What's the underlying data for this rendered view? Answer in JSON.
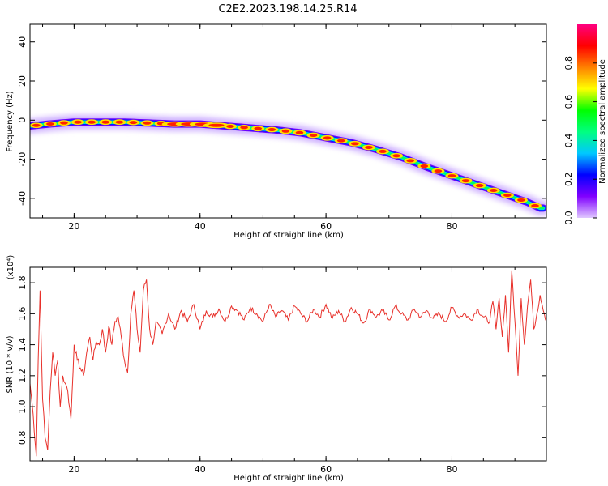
{
  "title": "C2E2.2023.198.14.25.R14",
  "chart_data": [
    {
      "type": "heatmap",
      "xlabel": "Height of straight line (km)",
      "ylabel": "Frequency (Hz)",
      "xlim": [
        13,
        95
      ],
      "ylim": [
        -50,
        49
      ],
      "xticks": [
        20,
        40,
        60,
        80
      ],
      "yticks": [
        40,
        20,
        0,
        -20,
        -40
      ],
      "ridge": {
        "x": [
          13,
          16,
          20,
          24,
          28,
          32,
          36,
          40,
          44,
          48,
          52,
          56,
          60,
          64,
          68,
          72,
          76,
          80,
          84,
          88,
          92,
          94
        ],
        "y": [
          -3,
          -2,
          -1,
          -1,
          -1,
          -1.5,
          -2,
          -2,
          -3,
          -4,
          -5,
          -6.5,
          -9,
          -11.5,
          -15,
          -19,
          -24,
          -28.5,
          -33,
          -37.5,
          -42,
          -45
        ]
      },
      "colorbar": {
        "label": "Normalized spectral amplitude",
        "range": [
          0,
          1
        ],
        "ticks": [
          "0.0",
          "0.2",
          "0.4",
          "0.6",
          "0.8"
        ],
        "stops": [
          "#e0c8ff",
          "#8000ff",
          "#0000ff",
          "#00c8ff",
          "#00ff80",
          "#00ff00",
          "#ffff00",
          "#ff8000",
          "#ff0000",
          "#ff0080"
        ]
      }
    },
    {
      "type": "line",
      "xlabel": "Height of straight line (km)",
      "ylabel": "SNR (10 * v/v)",
      "exponent_label": "(x10⁴)",
      "xlim": [
        13,
        95
      ],
      "ylim": [
        0.65,
        1.9
      ],
      "xticks": [
        20,
        40,
        60,
        80
      ],
      "yticks": [
        "0.8",
        "1.0",
        "1.2",
        "1.4",
        "1.6",
        "1.8"
      ],
      "color": "#e8302a",
      "series": [
        {
          "x": [
            13,
            13.5,
            14,
            14.3,
            14.6,
            15,
            15.4,
            15.8,
            16.2,
            16.6,
            17,
            17.4,
            17.8,
            18.2,
            18.6,
            19,
            19.5,
            20,
            20.5,
            21,
            21.5,
            22,
            22.5,
            23,
            23.5,
            24,
            24.5,
            25,
            25.5,
            26,
            26.5,
            27,
            27.5,
            28,
            28.5,
            29,
            29.5,
            30,
            30.5,
            31,
            31.5,
            32,
            32.5,
            33,
            34,
            35,
            36,
            37,
            38,
            39,
            40,
            41,
            42,
            43,
            44,
            45,
            46,
            47,
            48,
            49,
            50,
            51,
            52,
            53,
            54,
            55,
            56,
            57,
            58,
            59,
            60,
            61,
            62,
            63,
            64,
            65,
            66,
            67,
            68,
            69,
            70,
            71,
            72,
            73,
            74,
            75,
            76,
            77,
            78,
            79,
            80,
            81,
            82,
            83,
            84,
            85,
            86,
            86.5,
            87,
            87.5,
            88,
            88.5,
            89,
            89.5,
            90,
            90.5,
            91,
            91.5,
            92,
            92.5,
            93,
            93.5,
            94,
            95
          ],
          "y": [
            1.15,
            0.95,
            0.68,
            1.3,
            1.75,
            1.05,
            0.8,
            0.72,
            1.1,
            1.35,
            1.2,
            1.3,
            1.0,
            1.2,
            1.15,
            1.1,
            0.92,
            1.4,
            1.3,
            1.25,
            1.2,
            1.35,
            1.45,
            1.3,
            1.42,
            1.4,
            1.5,
            1.35,
            1.52,
            1.4,
            1.55,
            1.58,
            1.45,
            1.3,
            1.22,
            1.6,
            1.75,
            1.5,
            1.35,
            1.75,
            1.82,
            1.5,
            1.4,
            1.55,
            1.47,
            1.6,
            1.5,
            1.62,
            1.55,
            1.66,
            1.5,
            1.62,
            1.58,
            1.63,
            1.55,
            1.65,
            1.62,
            1.56,
            1.64,
            1.6,
            1.55,
            1.66,
            1.58,
            1.62,
            1.56,
            1.65,
            1.6,
            1.55,
            1.63,
            1.58,
            1.66,
            1.57,
            1.62,
            1.55,
            1.64,
            1.6,
            1.54,
            1.63,
            1.58,
            1.62,
            1.56,
            1.65,
            1.6,
            1.56,
            1.63,
            1.58,
            1.62,
            1.57,
            1.6,
            1.55,
            1.64,
            1.58,
            1.6,
            1.56,
            1.63,
            1.58,
            1.55,
            1.68,
            1.5,
            1.7,
            1.45,
            1.72,
            1.35,
            1.88,
            1.55,
            1.2,
            1.7,
            1.4,
            1.65,
            1.82,
            1.5,
            1.6,
            1.72,
            1.55
          ]
        }
      ]
    }
  ]
}
